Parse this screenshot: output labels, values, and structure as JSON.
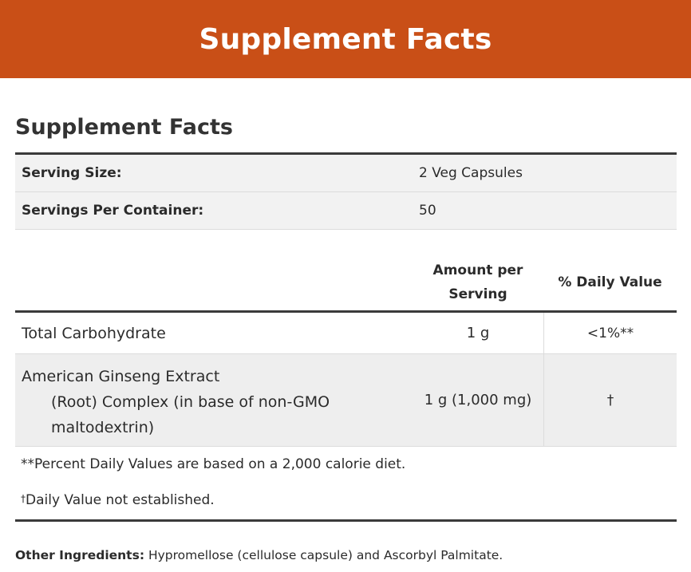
{
  "banner": {
    "title": "Supplement Facts"
  },
  "section_title": "Supplement Facts",
  "serving": [
    {
      "label": "Serving Size:",
      "value": "2 Veg Capsules"
    },
    {
      "label": "Servings Per Container:",
      "value": "50"
    }
  ],
  "columns": {
    "amount_line1": "Amount per",
    "amount_line2": "Serving",
    "daily_value": "% Daily Value"
  },
  "nutrients": [
    {
      "name": "Total Carbohydrate",
      "amount": "1 g",
      "dv": "<1%**"
    },
    {
      "name_line1": "American Ginseng Extract",
      "name_line2": "(Root) Complex (in base of non-GMO",
      "name_line3": "maltodextrin)",
      "amount": "1 g (1,000 mg)",
      "dv": "†"
    }
  ],
  "footnotes": {
    "percent_note": "**Percent Daily Values are based on a 2,000 calorie diet.",
    "dagger_symbol": "†",
    "dagger_note": "Daily Value not established."
  },
  "other_ingredients": {
    "label": "Other Ingredients:",
    "text": "Hypromellose (cellulose capsule) and Ascorbyl Palmitate."
  },
  "colors": {
    "banner": "#c94f17",
    "rule": "#3a3a3a",
    "shade": "#f2f2f2"
  }
}
